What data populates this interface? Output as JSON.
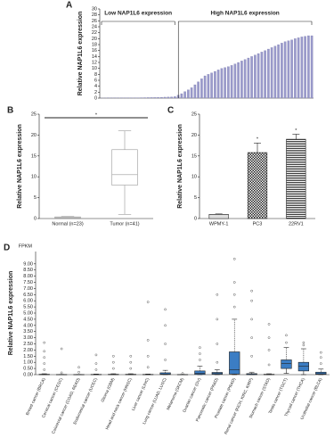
{
  "chart_data": [
    {
      "type": "bar",
      "panel": "A",
      "ylabel": "Relative NAP1L6 expression",
      "color": "#9a9acb",
      "values": [
        0.02,
        0.03,
        0.04,
        0.05,
        0.05,
        0.06,
        0.07,
        0.08,
        0.09,
        0.1,
        0.11,
        0.12,
        0.14,
        0.16,
        0.18,
        0.2,
        0.22,
        0.25,
        0.28,
        0.32,
        0.36,
        0.42,
        0.5,
        1.0,
        1.5,
        2.2,
        2.8,
        3.5,
        4.5,
        5.5,
        6.5,
        7.5,
        8.0,
        8.5,
        9.0,
        9.5,
        10.0,
        10.3,
        10.6,
        11.0,
        11.5,
        12.0,
        12.5,
        13.0,
        13.5,
        14.0,
        14.5,
        15.0,
        15.5,
        16.0,
        16.5,
        17.0,
        17.5,
        18.0,
        18.5,
        19.0,
        19.3,
        19.6,
        20.0,
        20.3,
        20.6,
        20.8,
        21.0,
        21.0
      ],
      "groups": [
        {
          "label": "Low NAP1L6 expression",
          "count": 23
        },
        {
          "label": "High NAP1L6 expression",
          "count": 41
        }
      ],
      "ylim": [
        0,
        30
      ],
      "yticks": [
        0,
        2,
        4,
        6,
        8,
        10,
        12,
        14,
        16,
        18,
        20,
        22,
        24,
        26,
        28,
        30
      ]
    },
    {
      "type": "box",
      "panel": "B",
      "ylabel": "Relative NAP1L6 expression",
      "color": "#ffffff",
      "stroke": "#999999",
      "categories": [
        "Normal (n=23)",
        "Tumor (n=41)"
      ],
      "boxes": [
        {
          "whisker_low": 0.02,
          "q1": 0.08,
          "median": 0.2,
          "q3": 0.4,
          "whisker_high": 0.5
        },
        {
          "whisker_low": 1.0,
          "q1": 8.0,
          "median": 10.5,
          "q3": 16.5,
          "whisker_high": 21.0
        }
      ],
      "annotation": "*",
      "ylim": [
        0,
        25
      ],
      "yticks": [
        0,
        5,
        10,
        15,
        20,
        25
      ]
    },
    {
      "type": "bar",
      "panel": "C",
      "ylabel": "Relative NAP1L6 expression",
      "categories": [
        "WPMY-1",
        "PC3",
        "22RV1"
      ],
      "values": [
        1.0,
        15.8,
        19.0
      ],
      "errors": [
        0.1,
        2.3,
        1.2
      ],
      "fills": [
        "dots",
        "checker",
        "stripes"
      ],
      "value_annotations": [
        null,
        "*",
        "*"
      ],
      "ylim": [
        0,
        25
      ],
      "yticks": [
        0,
        5,
        10,
        15,
        20,
        25
      ]
    },
    {
      "type": "box",
      "panel": "D",
      "ylabel": "Relative NAP1L6 expression",
      "unit": "FPKM",
      "color": "#3b7dc4",
      "stroke": "#222222",
      "categories": [
        "Breast cancer (BRCA)",
        "Cervical cancer (CESC)",
        "Colorectal cancer (COAD, READ)",
        "Endometrial cancer (UCEC)",
        "Glioma (GBM)",
        "Head and neck cancer (HNSC)",
        "Liver cancer (LIHC)",
        "Lung cancer (LUAD, LUSC)",
        "Melanoma (SKCM)",
        "Ovarian cancer (OV)",
        "Pancreatic cancer (PAAD)",
        "Prostate cancer (PRAD)",
        "Renal cancer (KICH, KIRC, KIRP)",
        "Stomach cancer (STAD)",
        "Testis cancer (TGCT)",
        "Thyroid cancer (THCA)",
        "Urothelial cancer (BLCA)"
      ],
      "boxes": [
        {
          "whisker_low": 0,
          "q1": 0,
          "median": 0.01,
          "q3": 0.03,
          "whisker_high": 0.07,
          "outliers": [
            0.4,
            0.9,
            1.4,
            1.9,
            2.6
          ]
        },
        {
          "whisker_low": 0,
          "q1": 0,
          "median": 0,
          "q3": 0.01,
          "whisker_high": 0.02,
          "outliers": [
            0.15,
            2.1
          ]
        },
        {
          "whisker_low": 0,
          "q1": 0,
          "median": 0,
          "q3": 0.01,
          "whisker_high": 0.02,
          "outliers": [
            0.2,
            0.6
          ]
        },
        {
          "whisker_low": 0,
          "q1": 0,
          "median": 0.01,
          "q3": 0.02,
          "whisker_high": 0.05,
          "outliers": [
            0.4,
            0.9,
            1.6
          ]
        },
        {
          "whisker_low": 0,
          "q1": 0,
          "median": 0.01,
          "q3": 0.03,
          "whisker_high": 0.07,
          "outliers": [
            0.5,
            1.0,
            1.5
          ]
        },
        {
          "whisker_low": 0,
          "q1": 0,
          "median": 0.01,
          "q3": 0.03,
          "whisker_high": 0.07,
          "outliers": [
            0.5,
            1.0,
            1.5
          ]
        },
        {
          "whisker_low": 0,
          "q1": 0,
          "median": 0.01,
          "q3": 0.02,
          "whisker_high": 0.05,
          "outliers": [
            0.6,
            1.5,
            2.8,
            5.9
          ]
        },
        {
          "whisker_low": 0,
          "q1": 0.01,
          "median": 0.04,
          "q3": 0.15,
          "whisker_high": 0.35,
          "outliers": [
            1.2,
            2.5,
            4.0,
            5.3
          ]
        },
        {
          "whisker_low": 0,
          "q1": 0,
          "median": 0,
          "q3": 0.01,
          "whisker_high": 0.02,
          "outliers": [
            0.1
          ]
        },
        {
          "whisker_low": 0,
          "q1": 0.02,
          "median": 0.1,
          "q3": 0.3,
          "whisker_high": 0.7,
          "outliers": [
            1.2,
            1.7,
            2.2
          ]
        },
        {
          "whisker_low": 0,
          "q1": 0.03,
          "median": 0.08,
          "q3": 0.18,
          "whisker_high": 0.4,
          "outliers": [
            1.0,
            2.5,
            4.5,
            6.5
          ]
        },
        {
          "whisker_low": 0,
          "q1": 0.05,
          "median": 0.4,
          "q3": 1.85,
          "whisker_high": 4.5,
          "outliers": [
            5.5,
            6.5,
            7.5,
            9.4
          ]
        },
        {
          "whisker_low": 0,
          "q1": 0,
          "median": 0.02,
          "q3": 0.08,
          "whisker_high": 0.2,
          "outliers": [
            1.5,
            3.0,
            4.5,
            6.0,
            6.8
          ]
        },
        {
          "whisker_low": 0,
          "q1": 0,
          "median": 0.01,
          "q3": 0.03,
          "whisker_high": 0.07,
          "outliers": [
            0.8,
            2.0,
            3.0,
            4.1
          ]
        },
        {
          "whisker_low": 0.1,
          "q1": 0.5,
          "median": 0.9,
          "q3": 1.2,
          "whisker_high": 2.2,
          "outliers": [
            2.6,
            3.2
          ]
        },
        {
          "whisker_low": 0,
          "q1": 0.3,
          "median": 0.7,
          "q3": 1.0,
          "whisker_high": 2.1,
          "outliers": [
            2.4,
            2.6
          ]
        },
        {
          "whisker_low": 0,
          "q1": 0.02,
          "median": 0.07,
          "q3": 0.2,
          "whisker_high": 0.45,
          "outliers": [
            0.9,
            1.4,
            1.8
          ]
        }
      ],
      "ylim": [
        0,
        10
      ],
      "yticks": [
        {
          "value": 0,
          "label": "0.00"
        },
        {
          "value": 0.5,
          "label": "0.50"
        },
        {
          "value": 1,
          "label": "1.00"
        },
        {
          "value": 1.5,
          "label": "1.50"
        },
        {
          "value": 2,
          "label": "2.00"
        },
        {
          "value": 2.5,
          "label": "2.50"
        },
        {
          "value": 3,
          "label": "3.00"
        },
        {
          "value": 3.5,
          "label": "3.50"
        },
        {
          "value": 4,
          "label": "4.00"
        },
        {
          "value": 4.5,
          "label": "4.50"
        },
        {
          "value": 5,
          "label": "5.00"
        },
        {
          "value": 5.5,
          "label": "5.50"
        },
        {
          "value": 6,
          "label": "6.00"
        },
        {
          "value": 6.5,
          "label": "6.50"
        },
        {
          "value": 7,
          "label": "7.00"
        },
        {
          "value": 7.5,
          "label": "7.50"
        },
        {
          "value": 8,
          "label": "8.00"
        },
        {
          "value": 8.5,
          "label": "8.50"
        },
        {
          "value": 9,
          "label": "9.00"
        }
      ]
    }
  ]
}
